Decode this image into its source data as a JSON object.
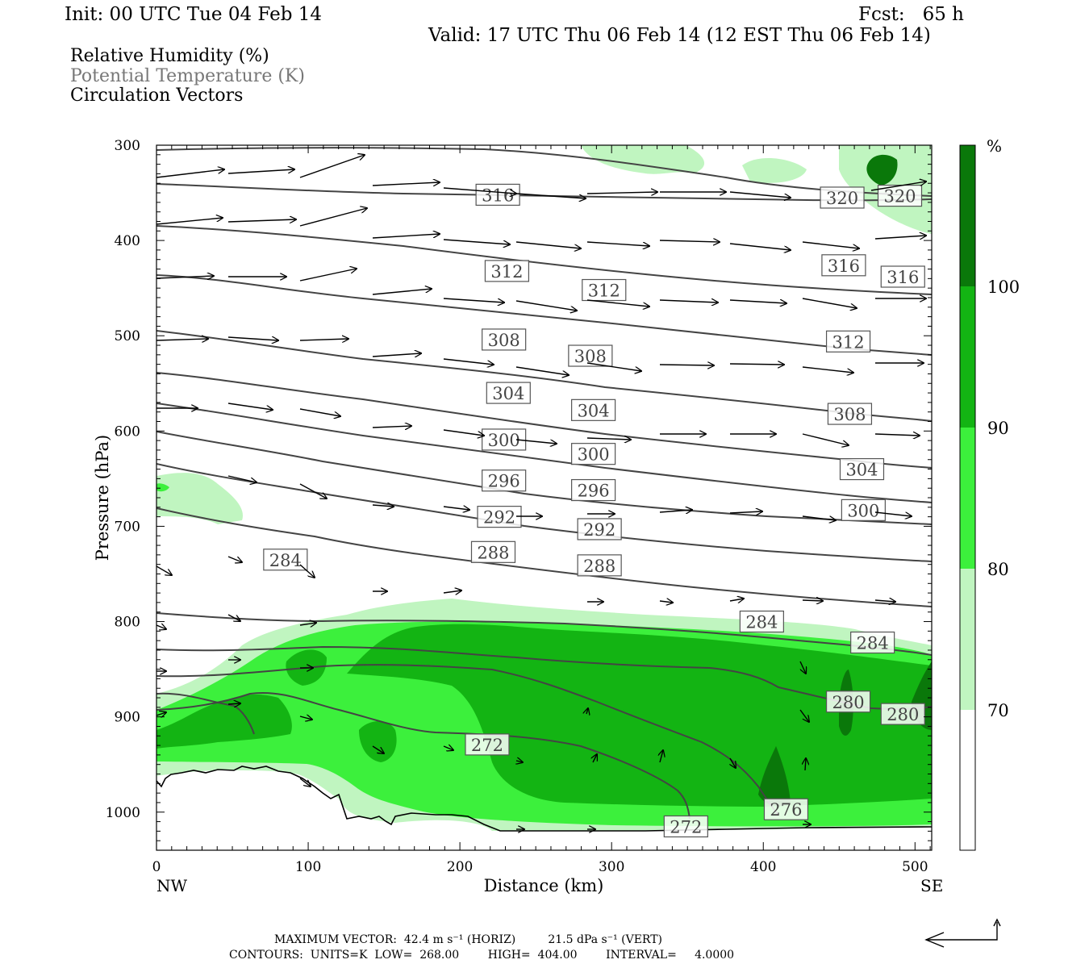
{
  "header": {
    "init": "Init: 00 UTC Tue 04 Feb 14",
    "fcst": "Fcst:   65 h",
    "valid": "Valid: 17 UTC Thu 06 Feb 14 (12 EST Thu 06 Feb 14)"
  },
  "legend": {
    "rh": "Relative Humidity (%)",
    "theta": "Potential Temperature (K)",
    "vectors": "Circulation Vectors"
  },
  "footer": {
    "max_vector": "MAXIMUM VECTOR:  42.4 m s⁻¹ (HORIZ)         21.5 dPa s⁻¹ (VERT)",
    "contours": "CONTOURS:  UNITS=K  LOW=  268.00        HIGH=  404.00        INTERVAL=     4.0000"
  },
  "colors": {
    "rh70": "#c0f5c0",
    "rh80": "#3cf03c",
    "rh90": "#13b413",
    "rh100": "#0a780a",
    "contour": "#444444"
  },
  "chart_data": {
    "type": "cross-section",
    "xlabel": "Distance (km)",
    "ylabel": "Pressure (hPa)",
    "x_ticks": [
      0,
      100,
      200,
      300,
      400,
      500
    ],
    "x_tick_labels": [
      "0",
      "100",
      "200",
      "300",
      "400",
      "500"
    ],
    "xlim": [
      0,
      511
    ],
    "y_ticks": [
      300,
      400,
      500,
      600,
      700,
      800,
      900,
      1000
    ],
    "y_tick_labels": [
      "300",
      "400",
      "500",
      "600",
      "700",
      "800",
      "900",
      "1000"
    ],
    "ylim": [
      300,
      1040
    ],
    "left_label": "NW",
    "right_label": "SE",
    "colorbar": {
      "unit": "%",
      "levels": [
        70,
        80,
        90,
        100
      ],
      "level_labels": [
        "70",
        "80",
        "90",
        "100"
      ]
    },
    "theta_contour_labels": [
      {
        "label": "316",
        "x": 225,
        "p": 352
      },
      {
        "label": "320",
        "x": 452,
        "p": 355
      },
      {
        "label": "320",
        "x": 490,
        "p": 353
      },
      {
        "label": "312",
        "x": 231,
        "p": 432
      },
      {
        "label": "312",
        "x": 295,
        "p": 452
      },
      {
        "label": "316",
        "x": 453,
        "p": 426
      },
      {
        "label": "316",
        "x": 492,
        "p": 438
      },
      {
        "label": "308",
        "x": 229,
        "p": 504
      },
      {
        "label": "308",
        "x": 286,
        "p": 521
      },
      {
        "label": "312",
        "x": 456,
        "p": 506
      },
      {
        "label": "304",
        "x": 232,
        "p": 560
      },
      {
        "label": "304",
        "x": 288,
        "p": 578
      },
      {
        "label": "308",
        "x": 457,
        "p": 582
      },
      {
        "label": "300",
        "x": 229,
        "p": 609
      },
      {
        "label": "300",
        "x": 288,
        "p": 624
      },
      {
        "label": "304",
        "x": 465,
        "p": 640
      },
      {
        "label": "296",
        "x": 229,
        "p": 652
      },
      {
        "label": "296",
        "x": 288,
        "p": 662
      },
      {
        "label": "300",
        "x": 466,
        "p": 683
      },
      {
        "label": "292",
        "x": 226,
        "p": 690
      },
      {
        "label": "292",
        "x": 292,
        "p": 703
      },
      {
        "label": "284",
        "x": 85,
        "p": 735
      },
      {
        "label": "288",
        "x": 222,
        "p": 727
      },
      {
        "label": "288",
        "x": 292,
        "p": 741
      },
      {
        "label": "284",
        "x": 399,
        "p": 800
      },
      {
        "label": "284",
        "x": 472,
        "p": 822
      },
      {
        "label": "280",
        "x": 456,
        "p": 884
      },
      {
        "label": "280",
        "x": 492,
        "p": 897
      },
      {
        "label": "272",
        "x": 218,
        "p": 929
      },
      {
        "label": "276",
        "x": 415,
        "p": 997
      },
      {
        "label": "272",
        "x": 349,
        "p": 1015
      }
    ]
  }
}
